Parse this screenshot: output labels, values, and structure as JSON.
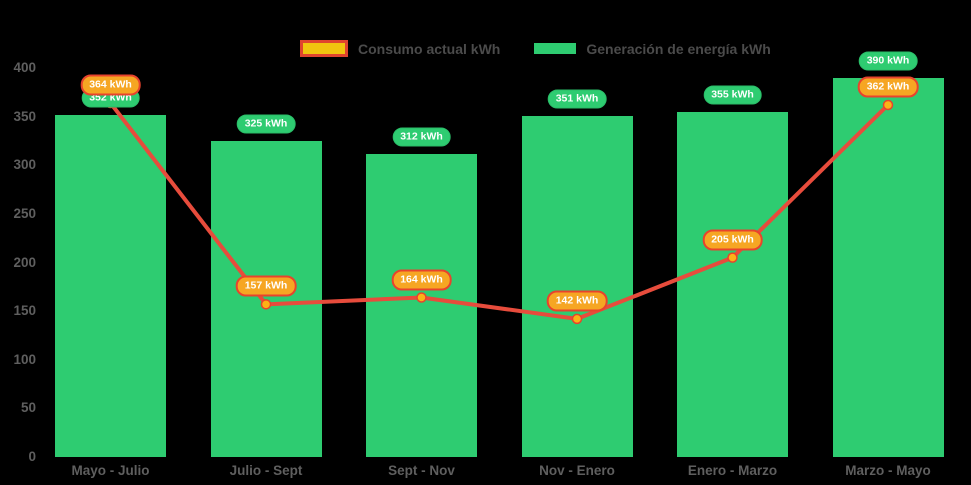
{
  "legend": {
    "consumption_label": "Consumo actual kWh",
    "generation_label": "Generación de energía kWh"
  },
  "chart_data": {
    "type": "bar",
    "title": "",
    "xlabel": "",
    "ylabel": "",
    "categories": [
      "Mayo - Julio",
      "Julio - Sept",
      "Sept - Nov",
      "Nov - Enero",
      "Enero - Marzo",
      "Marzo - Mayo"
    ],
    "series": [
      {
        "name": "Consumo actual kWh",
        "type": "line",
        "values": [
          364,
          157,
          164,
          142,
          205,
          362
        ],
        "color": "#e74c3c",
        "marker_fill": "#fcb216",
        "marker_stroke": "#e8432d",
        "label_bg": "#f6a623",
        "label_border": "#e8432d",
        "swatch_fill": "#f1c40f",
        "swatch_border": "#e0442e"
      },
      {
        "name": "Generación de energía kWh",
        "type": "bar",
        "values": [
          352,
          325,
          312,
          351,
          355,
          390
        ],
        "color": "#2ecc71",
        "label_bg": "#2ecc71",
        "label_border": "#2abd68"
      }
    ],
    "point_labels_consumption": [
      "364 kWh",
      "157 kWh",
      "164 kWh",
      "142 kWh",
      "205 kWh",
      "362 kWh"
    ],
    "point_labels_generation": [
      "352 kWh",
      "325 kWh",
      "312 kWh",
      "351 kWh",
      "355 kWh",
      "390 kWh"
    ],
    "value_suffix": " kWh",
    "ylim": [
      0,
      400
    ],
    "yticks": [
      0,
      50,
      100,
      150,
      200,
      250,
      300,
      350,
      400
    ],
    "grid": false,
    "legend_position": "top-center",
    "background": "#000000",
    "axis_label_color": "#5f5f5f"
  }
}
